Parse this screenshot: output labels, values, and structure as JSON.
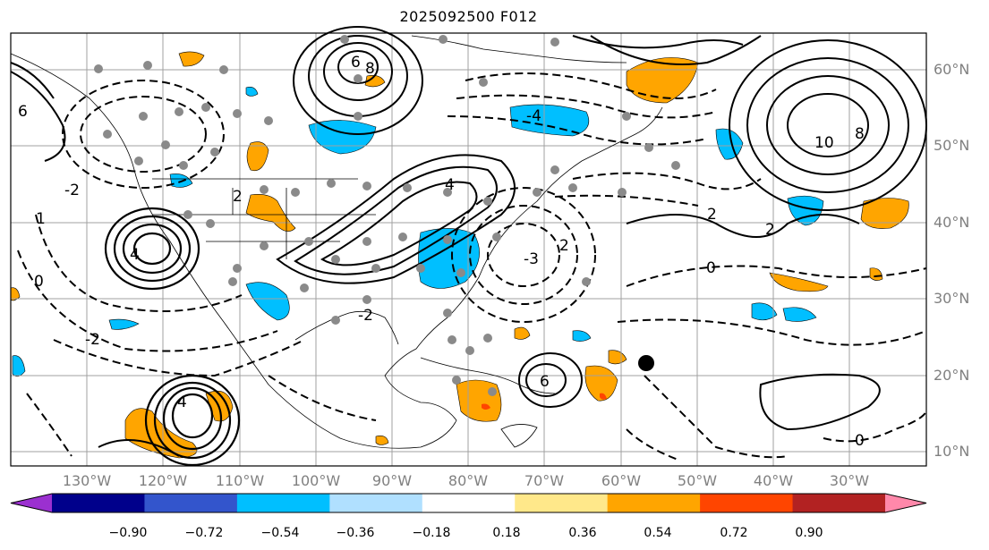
{
  "title": "2025092500 F012",
  "lat_labels": [
    "60°N",
    "50°N",
    "40°N",
    "30°N",
    "20°N",
    "10°N"
  ],
  "lon_labels": [
    "130°W",
    "120°W",
    "110°W",
    "100°W",
    "90°W",
    "80°W",
    "70°W",
    "60°W",
    "50°W",
    "40°W",
    "30°W"
  ],
  "contour_labels": [
    "6",
    "8",
    "10",
    "8",
    "6",
    "4",
    "2",
    "0",
    "-2",
    "-4",
    "-2",
    "0",
    "2",
    "4",
    "6",
    "4",
    "2",
    "0",
    "-2",
    "-3",
    "2",
    "1"
  ],
  "colorbar": {
    "ticks": [
      "−0.90",
      "−0.72",
      "−0.54",
      "−0.36",
      "−0.18",
      "0.18",
      "0.36",
      "0.54",
      "0.72",
      "0.90"
    ],
    "colors": [
      "#9b30d0",
      "#00008b",
      "#3355cc",
      "#00bfff",
      "#b0e0ff",
      "#ffffff",
      "#ffe88a",
      "#ffa500",
      "#ff4500",
      "#b22222",
      "#ff88aa"
    ]
  },
  "colors": {
    "positive_shading": "#ffa500",
    "negative_shading": "#00bfff",
    "contour": "#000000",
    "gridline": "#a0a0a0",
    "tick_label": "#808080"
  }
}
